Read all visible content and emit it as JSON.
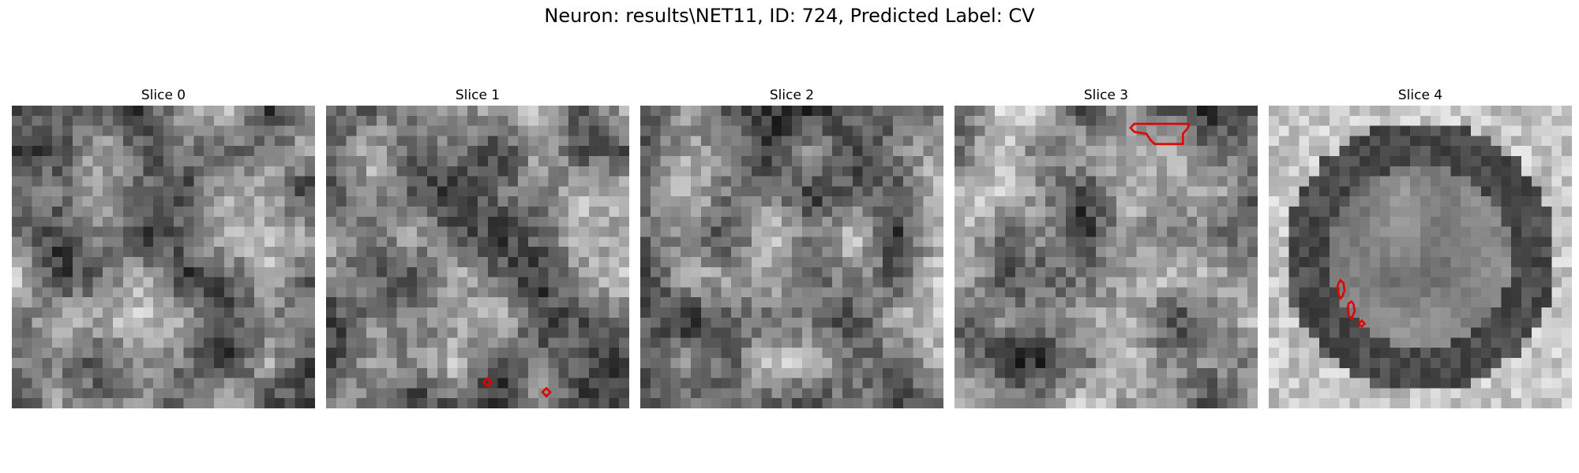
{
  "figure": {
    "title": "Neuron: results\\NET11, ID: 724, Predicted Label: CV"
  },
  "panels": [
    {
      "title": "Slice 0",
      "seed": 11,
      "type": "texture"
    },
    {
      "title": "Slice 1",
      "seed": 23,
      "type": "texture"
    },
    {
      "title": "Slice 2",
      "seed": 37,
      "type": "texture"
    },
    {
      "title": "Slice 3",
      "seed": 41,
      "type": "texture"
    },
    {
      "title": "Slice 4",
      "seed": 59,
      "type": "ring"
    }
  ],
  "colors": {
    "contour": "#e00000"
  },
  "icons": {
    "contour": "red-contour-outline"
  }
}
